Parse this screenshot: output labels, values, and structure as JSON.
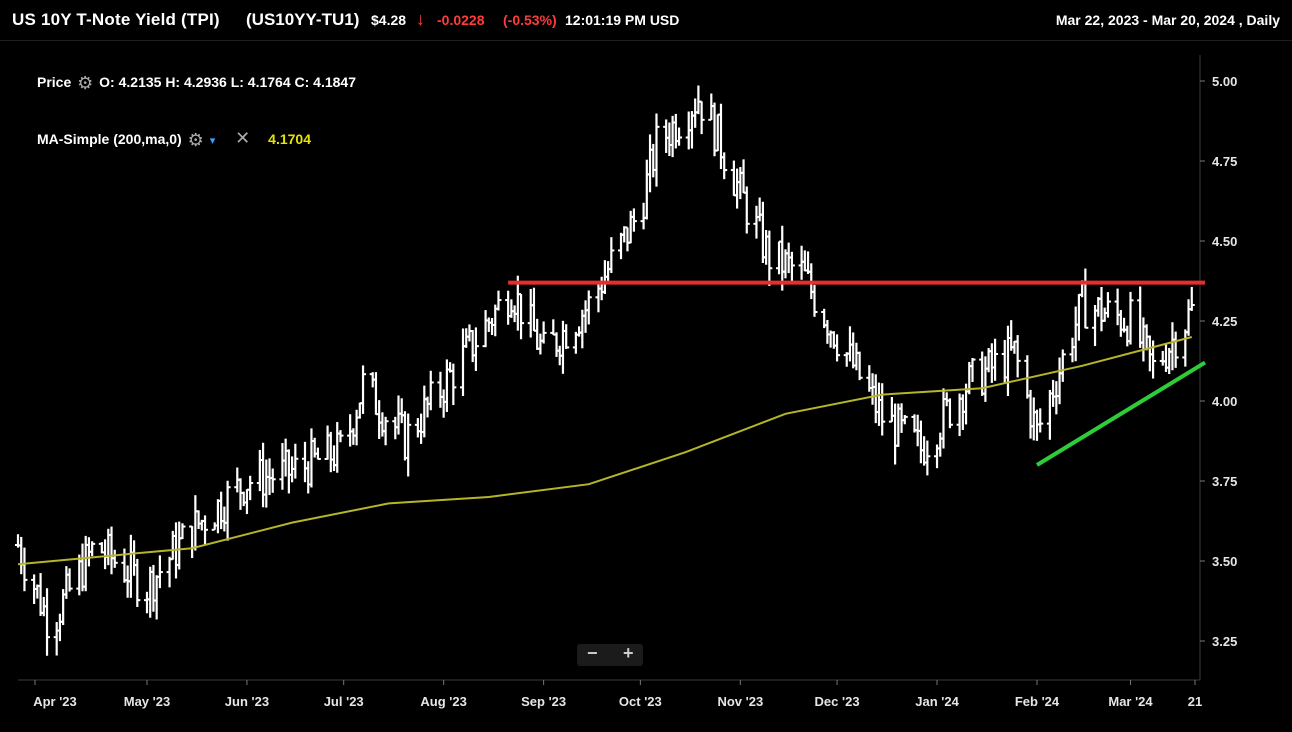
{
  "header": {
    "title": "US 10Y T-Note Yield (TPI)",
    "symbol": "(US10YY-TU1)",
    "price": "$4.28",
    "arrow": "↓",
    "change": "-0.0228",
    "change_pct": "(-0.53%)",
    "time": "12:01:19 PM USD",
    "range": "Mar 22, 2023 - Mar 20, 2024 , Daily"
  },
  "legend": {
    "price_label": "Price",
    "ohlc": "O: 4.2135  H: 4.2936  L: 4.1764  C: 4.1847",
    "ma_label": "MA-Simple (200,ma,0)",
    "ma_value": "4.1704"
  },
  "zoom": {
    "minus": "−",
    "plus": "+"
  },
  "colors": {
    "background": "#000000",
    "bars": "#ffffff",
    "ma_line": "#b5b52a",
    "resistance": "#e62e2e",
    "support": "#2fcc3a",
    "down_change": "#ff3b3b"
  },
  "chart_data": {
    "type": "line",
    "title": "US 10Y T-Note Yield (TPI)",
    "ylim": [
      3.15,
      5.05
    ],
    "y_ticks": [
      "5.00",
      "4.75",
      "4.50",
      "4.25",
      "4.00",
      "3.75",
      "3.50",
      "3.25"
    ],
    "x_ticks": [
      "Apr '23",
      "May '23",
      "Jun '23",
      "Jul '23",
      "Aug '23",
      "Sep '23",
      "Oct '23",
      "Nov '23",
      "Dec '23",
      "Jan '24",
      "Feb '24",
      "Mar '24",
      "21"
    ],
    "series": [
      {
        "name": "Price",
        "style": "ohlc",
        "x": [
          "2023-03-22",
          "2023-04-01",
          "2023-04-15",
          "2023-05-01",
          "2023-05-15",
          "2023-06-01",
          "2023-06-15",
          "2023-07-01",
          "2023-07-07",
          "2023-07-20",
          "2023-08-01",
          "2023-08-15",
          "2023-08-22",
          "2023-09-01",
          "2023-09-15",
          "2023-10-01",
          "2023-10-06",
          "2023-10-19",
          "2023-10-24",
          "2023-11-01",
          "2023-11-10",
          "2023-11-20",
          "2023-12-01",
          "2023-12-15",
          "2023-12-27",
          "2024-01-10",
          "2024-01-25",
          "2024-02-01",
          "2024-02-15",
          "2024-03-01",
          "2024-03-08",
          "2024-03-20"
        ],
        "close": [
          3.55,
          3.3,
          3.55,
          3.42,
          3.6,
          3.75,
          3.78,
          3.85,
          4.05,
          3.88,
          4.05,
          4.25,
          4.35,
          4.15,
          4.3,
          4.6,
          4.8,
          4.95,
          4.85,
          4.65,
          4.45,
          4.4,
          4.2,
          3.95,
          3.85,
          4.05,
          4.15,
          3.9,
          4.3,
          4.25,
          4.1,
          4.28
        ]
      },
      {
        "name": "MA-Simple (200,ma,0)",
        "x": [
          "2023-03-22",
          "2023-05-15",
          "2023-06-15",
          "2023-07-15",
          "2023-08-15",
          "2023-09-15",
          "2023-10-15",
          "2023-11-15",
          "2023-12-15",
          "2024-01-15",
          "2024-02-15",
          "2024-03-20"
        ],
        "values": [
          3.49,
          3.54,
          3.62,
          3.68,
          3.7,
          3.74,
          3.84,
          3.96,
          4.02,
          4.04,
          4.11,
          4.2
        ]
      }
    ],
    "annotations": [
      {
        "type": "hline",
        "color": "#e62e2e",
        "y": 4.37,
        "x_start": "2023-08-21",
        "x_end": "2024-03-21"
      },
      {
        "type": "trendline",
        "color": "#2fcc3a",
        "points": [
          [
            "2024-02-01",
            3.8
          ],
          [
            "2024-03-21",
            4.12
          ]
        ]
      }
    ],
    "grid": false,
    "legend": "top-left"
  }
}
